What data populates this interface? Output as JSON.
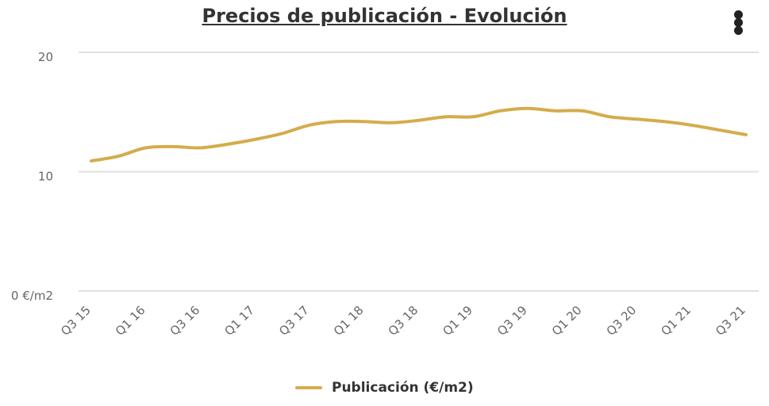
{
  "chart_data": {
    "type": "line",
    "title": "Precios de publicación - Evolución",
    "xlabel": "",
    "ylabel": "",
    "ylim": [
      0,
      20
    ],
    "yticks": [
      {
        "value": 0,
        "label": "0 €/m2"
      },
      {
        "value": 10,
        "label": "10"
      },
      {
        "value": 20,
        "label": "20"
      }
    ],
    "x": [
      "Q3 15",
      "Q4 15",
      "Q1 16",
      "Q2 16",
      "Q3 16",
      "Q4 16",
      "Q1 17",
      "Q2 17",
      "Q3 17",
      "Q4 17",
      "Q1 18",
      "Q2 18",
      "Q3 18",
      "Q4 18",
      "Q1 19",
      "Q2 19",
      "Q3 19",
      "Q4 19",
      "Q1 20",
      "Q2 20",
      "Q3 20",
      "Q4 20",
      "Q1 21",
      "Q2 21",
      "Q3 21"
    ],
    "xtick_labels": [
      "Q3 15",
      "Q1 16",
      "Q3 16",
      "Q1 17",
      "Q3 17",
      "Q1 18",
      "Q3 18",
      "Q1 19",
      "Q3 19",
      "Q1 20",
      "Q3 20",
      "Q1 21",
      "Q3 21"
    ],
    "series": [
      {
        "name": "Publicación (€/m2)",
        "color": "#d4ac4b",
        "values": [
          10.9,
          11.3,
          12.0,
          12.1,
          12.0,
          12.3,
          12.7,
          13.2,
          13.9,
          14.2,
          14.2,
          14.1,
          14.3,
          14.6,
          14.6,
          15.1,
          15.3,
          15.1,
          15.1,
          14.6,
          14.4,
          14.2,
          13.9,
          13.5,
          13.1
        ]
      }
    ],
    "grid": true,
    "legend": "bottom"
  },
  "menu": {
    "icon": "menu-dots-icon"
  }
}
